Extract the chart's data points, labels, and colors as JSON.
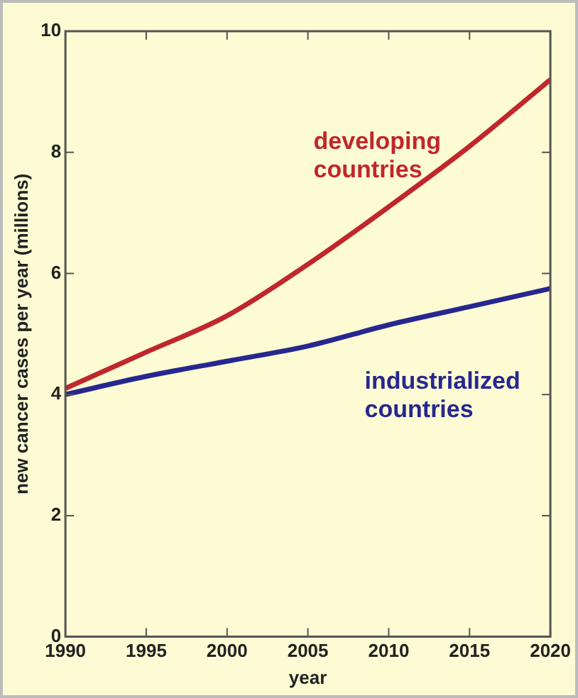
{
  "chart_data": {
    "type": "line",
    "xlabel": "year",
    "ylabel": "new cancer cases per year (millions)",
    "x": [
      1990,
      1995,
      2000,
      2005,
      2010,
      2015,
      2020
    ],
    "series": [
      {
        "name": "developing countries",
        "color": "#c0272d",
        "values": [
          4.1,
          4.7,
          5.3,
          6.15,
          7.1,
          8.1,
          9.2
        ]
      },
      {
        "name": "industrialized countries",
        "color": "#27278f",
        "values": [
          4.0,
          4.3,
          4.55,
          4.8,
          5.15,
          5.45,
          5.75
        ]
      }
    ],
    "xlim": [
      1990,
      2020
    ],
    "xticks": [
      1990,
      1995,
      2000,
      2005,
      2010,
      2015,
      2020
    ],
    "ylim": [
      0,
      10
    ],
    "yticks": [
      0,
      2,
      4,
      6,
      8,
      10
    ],
    "grid": false,
    "legend": false,
    "marker": "none",
    "line_style": "solid"
  }
}
